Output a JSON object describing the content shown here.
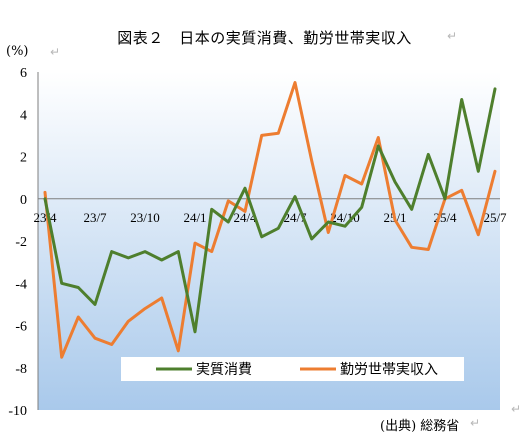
{
  "title": "図表２　日本の実質消費、勤労世帯実収入",
  "ylabel": "(%)",
  "source": "(出典) 総務省",
  "chart_data": {
    "type": "line",
    "x": [
      "23/4",
      "23/5",
      "23/6",
      "23/7",
      "23/8",
      "23/9",
      "23/10",
      "23/11",
      "23/12",
      "24/1",
      "24/2",
      "24/3",
      "24/4",
      "24/5",
      "24/6",
      "24/7",
      "24/8",
      "24/9",
      "24/10",
      "24/11",
      "24/12",
      "25/1",
      "25/2",
      "25/3",
      "25/4",
      "25/5",
      "25/6",
      "25/7"
    ],
    "x_tick_labels": [
      "23/4",
      "23/7",
      "23/10",
      "24/1",
      "24/4",
      "24/7",
      "24/10",
      "25/1",
      "25/4",
      "25/7"
    ],
    "ylim": [
      -10,
      6
    ],
    "yticks": [
      6,
      4,
      2,
      0,
      -2,
      -4,
      -6,
      -8,
      -10
    ],
    "grid": false,
    "legend_position": "bottom",
    "series": [
      {
        "name": "実質消費",
        "color": "#4e7f2d",
        "values": [
          0,
          -4.0,
          -4.2,
          -5.0,
          -2.5,
          -2.8,
          -2.5,
          -2.9,
          -2.5,
          -6.3,
          -0.5,
          -1.1,
          0.5,
          -1.8,
          -1.4,
          0.1,
          -1.9,
          -1.1,
          -1.3,
          -0.4,
          2.5,
          0.8,
          -0.5,
          2.1,
          0.0,
          4.7,
          1.3,
          5.2
        ]
      },
      {
        "name": "勤労世帯実収入",
        "color": "#ed7d31",
        "values": [
          0.3,
          -7.5,
          -5.6,
          -6.6,
          -6.9,
          -5.8,
          -5.2,
          -4.7,
          -7.2,
          -2.1,
          -2.5,
          -0.1,
          -0.6,
          3.0,
          3.1,
          5.5,
          1.8,
          -1.6,
          1.1,
          0.7,
          2.9,
          -1.0,
          -2.3,
          -2.4,
          0.0,
          0.4,
          -1.7,
          1.3
        ]
      }
    ]
  }
}
